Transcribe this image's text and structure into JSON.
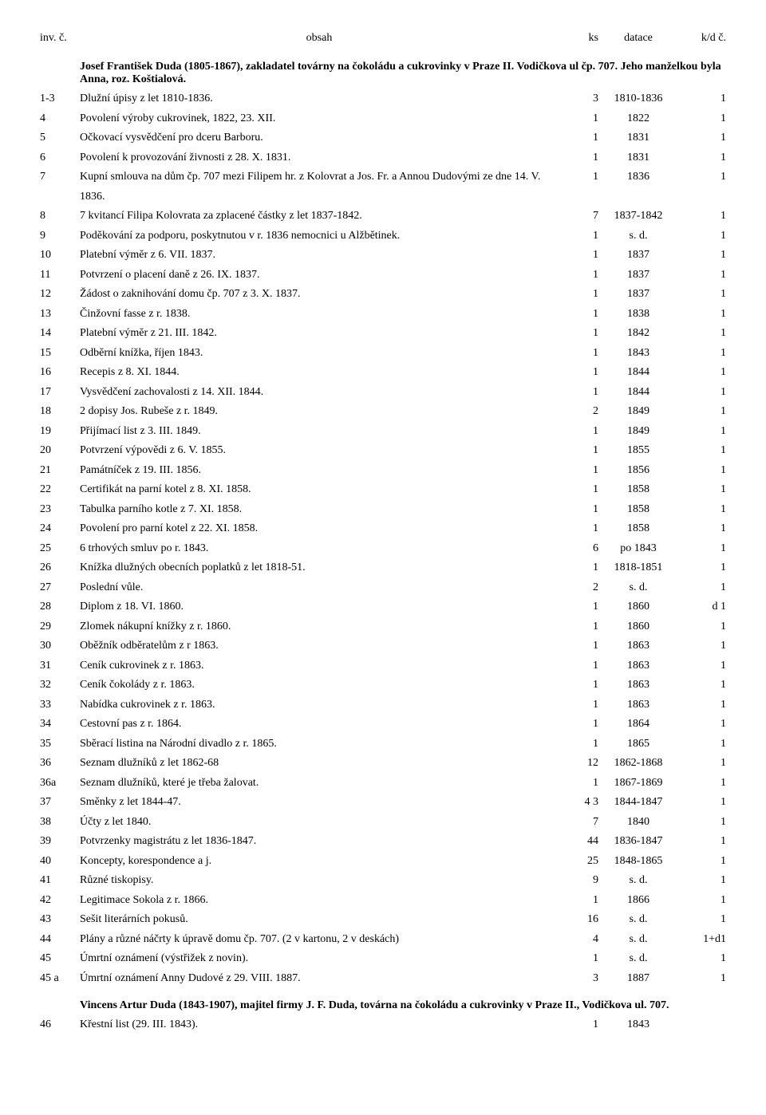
{
  "header": {
    "inv": "inv. č.",
    "obsah": "obsah",
    "ks": "ks",
    "datace": "datace",
    "kd": "k/d č."
  },
  "section1": {
    "title": "Josef František Duda (1805-1867), zakladatel továrny na čokoládu a cukrovinky v Praze II. Vodičkova ul čp. 707. Jeho manželkou byla Anna, roz. Koštialová."
  },
  "rows": [
    {
      "inv": "1-3",
      "text": "Dlužní úpisy z let 1810-1836.",
      "ks": "3",
      "datace": "1810-1836",
      "kd": "1"
    },
    {
      "inv": "4",
      "text": "Povolení výroby cukrovinek, 1822, 23. XII.",
      "ks": "1",
      "datace": "1822",
      "kd": "1"
    },
    {
      "inv": "5",
      "text": "Očkovací vysvědčení pro dceru Barboru.",
      "ks": "1",
      "datace": "1831",
      "kd": "1"
    },
    {
      "inv": "6",
      "text": "Povolení k provozování živnosti z 28. X. 1831.",
      "ks": "1",
      "datace": "1831",
      "kd": "1"
    },
    {
      "inv": "7",
      "text": "Kupní smlouva na dům čp. 707 mezi Filipem hr. z Kolovrat a Jos. Fr. a Annou Dudovými ze dne 14. V. 1836.",
      "ks": "1",
      "datace": "1836",
      "kd": "1"
    },
    {
      "inv": "8",
      "text": "7 kvitancí Filipa Kolovrata za zplacené částky z let 1837-1842.",
      "ks": "7",
      "datace": "1837-1842",
      "kd": "1"
    },
    {
      "inv": "9",
      "text": "Poděkování za podporu, poskytnutou v r. 1836 nemocnici u Alžbětinek.",
      "ks": "1",
      "datace": "s. d.",
      "kd": "1"
    },
    {
      "inv": "10",
      "text": "Platební výměr z 6. VII. 1837.",
      "ks": "1",
      "datace": "1837",
      "kd": "1"
    },
    {
      "inv": "11",
      "text": "Potvrzení o placení daně z 26. IX. 1837.",
      "ks": "1",
      "datace": "1837",
      "kd": "1"
    },
    {
      "inv": "12",
      "text": "Žádost o zaknihování domu čp. 707 z 3. X. 1837.",
      "ks": "1",
      "datace": "1837",
      "kd": "1"
    },
    {
      "inv": "13",
      "text": "Činžovní fasse z r. 1838.",
      "ks": "1",
      "datace": "1838",
      "kd": "1"
    },
    {
      "inv": "14",
      "text": "Platební výměr z 21. III. 1842.",
      "ks": "1",
      "datace": "1842",
      "kd": "1"
    },
    {
      "inv": "15",
      "text": "Odběrní knížka, říjen 1843.",
      "ks": "1",
      "datace": "1843",
      "kd": "1"
    },
    {
      "inv": "16",
      "text": "Recepis z 8. XI. 1844.",
      "ks": "1",
      "datace": "1844",
      "kd": "1"
    },
    {
      "inv": "17",
      "text": "Vysvědčení zachovalosti z 14. XII. 1844.",
      "ks": "1",
      "datace": "1844",
      "kd": "1"
    },
    {
      "inv": "18",
      "text": "2 dopisy Jos. Rubeše z r. 1849.",
      "ks": "2",
      "datace": "1849",
      "kd": "1"
    },
    {
      "inv": "19",
      "text": "Přijímací list z 3. III. 1849.",
      "ks": "1",
      "datace": "1849",
      "kd": "1"
    },
    {
      "inv": "20",
      "text": "Potvrzení výpovědi z 6. V. 1855.",
      "ks": "1",
      "datace": "1855",
      "kd": "1"
    },
    {
      "inv": "21",
      "text": "Památníček z 19. III. 1856.",
      "ks": "1",
      "datace": "1856",
      "kd": "1"
    },
    {
      "inv": "22",
      "text": "Certifikát na parní kotel z 8. XI. 1858.",
      "ks": "1",
      "datace": "1858",
      "kd": "1"
    },
    {
      "inv": "23",
      "text": "Tabulka parního kotle z 7. XI. 1858.",
      "ks": "1",
      "datace": "1858",
      "kd": "1"
    },
    {
      "inv": "24",
      "text": "Povolení pro parní kotel z 22. XI. 1858.",
      "ks": "1",
      "datace": "1858",
      "kd": "1"
    },
    {
      "inv": "25",
      "text": "6 trhových smluv po r. 1843.",
      "ks": "6",
      "datace": "po 1843",
      "kd": "1"
    },
    {
      "inv": "26",
      "text": "Knížka dlužných obecních poplatků z let 1818-51.",
      "ks": "1",
      "datace": "1818-1851",
      "kd": "1"
    },
    {
      "inv": "27",
      "text": "Poslední vůle.",
      "ks": "2",
      "datace": "s. d.",
      "kd": "1"
    },
    {
      "inv": "28",
      "text": "Diplom z 18. VI. 1860.",
      "ks": "1",
      "datace": "1860",
      "kd": "d 1"
    },
    {
      "inv": "29",
      "text": "Zlomek nákupní knížky z r. 1860.",
      "ks": "1",
      "datace": "1860",
      "kd": "1"
    },
    {
      "inv": "30",
      "text": "Oběžník odběratelům z r 1863.",
      "ks": "1",
      "datace": "1863",
      "kd": "1"
    },
    {
      "inv": "31",
      "text": "Ceník cukrovinek z r. 1863.",
      "ks": "1",
      "datace": "1863",
      "kd": "1"
    },
    {
      "inv": "32",
      "text": "Ceník čokolády z r. 1863.",
      "ks": "1",
      "datace": "1863",
      "kd": "1"
    },
    {
      "inv": "33",
      "text": "Nabídka cukrovinek z r. 1863.",
      "ks": "1",
      "datace": "1863",
      "kd": "1"
    },
    {
      "inv": "34",
      "text": "Cestovní pas z r. 1864.",
      "ks": "1",
      "datace": "1864",
      "kd": "1"
    },
    {
      "inv": "35",
      "text": "Sběrací listina na Národní divadlo z r. 1865.",
      "ks": "1",
      "datace": "1865",
      "kd": "1"
    },
    {
      "inv": "36",
      "text": "Seznam dlužníků z let 1862-68",
      "ks": "12",
      "datace": "1862-1868",
      "kd": "1"
    },
    {
      "inv": "36a",
      "text": "Seznam dlužníků, které je třeba žalovat.",
      "ks": "1",
      "datace": "1867-1869",
      "kd": "1"
    },
    {
      "inv": "37",
      "text": "Směnky z let 1844-47.",
      "ks": "4 3",
      "datace": "1844-1847",
      "kd": "1"
    },
    {
      "inv": "38",
      "text": "Účty z let 1840.",
      "ks": "7",
      "datace": "1840",
      "kd": "1"
    },
    {
      "inv": "39",
      "text": "Potvrzenky magistrátu z let 1836-1847.",
      "ks": "44",
      "datace": "1836-1847",
      "kd": "1"
    },
    {
      "inv": "40",
      "text": "Koncepty, korespondence a j.",
      "ks": "25",
      "datace": "1848-1865",
      "kd": "1"
    },
    {
      "inv": "41",
      "text": "Různé tiskopisy.",
      "ks": "9",
      "datace": "s. d.",
      "kd": "1"
    },
    {
      "inv": "42",
      "text": "Legitimace Sokola z r. 1866.",
      "ks": "1",
      "datace": "1866",
      "kd": "1"
    },
    {
      "inv": "43",
      "text": "Sešit literárních pokusů.",
      "ks": "16",
      "datace": "s. d.",
      "kd": "1"
    },
    {
      "inv": "44",
      "text": "Plány a různé náčrty k úpravě domu čp. 707. (2 v kartonu, 2 v deskách)",
      "ks": "4",
      "datace": "s. d.",
      "kd": "1+d1"
    },
    {
      "inv": "45",
      "text": "Úmrtní oznámení (výstřižek z novin).",
      "ks": "1",
      "datace": "s. d.",
      "kd": "1"
    },
    {
      "inv": "45 a",
      "text": "Úmrtní oznámení Anny Dudové z 29. VIII. 1887.",
      "ks": "3",
      "datace": "1887",
      "kd": "1"
    }
  ],
  "section2": {
    "title": "Vincens Artur Duda (1843-1907), majitel firmy J. F. Duda, továrna na čokoládu a cukrovinky v Praze II., Vodičkova ul. 707."
  },
  "rows2": [
    {
      "inv": "46",
      "text": "Křestní list (29. III. 1843).",
      "ks": "1",
      "datace": "1843",
      "kd": ""
    }
  ]
}
